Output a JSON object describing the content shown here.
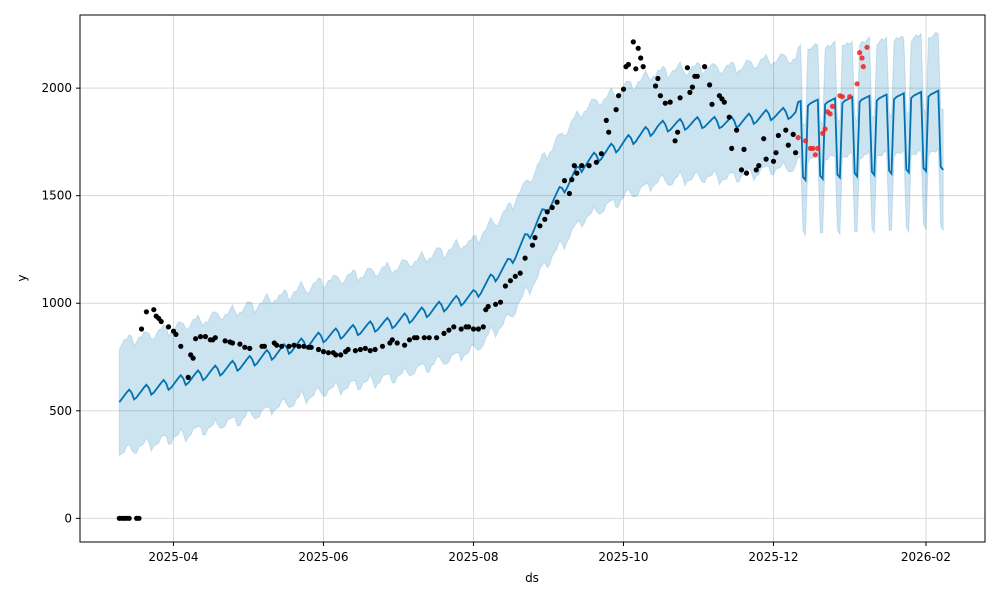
{
  "chart_data": {
    "type": "line",
    "title": "",
    "xlabel": "ds",
    "ylabel": "y",
    "x_origin": "2025-03-10",
    "x_unit": "days since 2025-03-10",
    "xlim": [
      -16,
      352
    ],
    "ylim": [
      -110,
      2340
    ],
    "grid": true,
    "x_ticks": [
      {
        "label": "2025-04",
        "day": 22
      },
      {
        "label": "2025-06",
        "day": 83
      },
      {
        "label": "2025-08",
        "day": 144
      },
      {
        "label": "2025-10",
        "day": 205
      },
      {
        "label": "2025-12",
        "day": 266
      },
      {
        "label": "2026-02",
        "day": 328
      }
    ],
    "y_ticks": [
      0,
      500,
      1000,
      1500,
      2000
    ],
    "colors": {
      "forecast": "#0072B2",
      "interval": "#0072B2",
      "observed": "#000000",
      "actual_test": "#ee2222"
    },
    "forecast": {
      "start_day": 0,
      "end_day": 335,
      "cutoff_day": 276,
      "trend_knots": [
        [
          0,
          560
        ],
        [
          22,
          630
        ],
        [
          52,
          725
        ],
        [
          83,
          845
        ],
        [
          113,
          915
        ],
        [
          144,
          1035
        ],
        [
          158,
          1180
        ],
        [
          175,
          1460
        ],
        [
          189,
          1650
        ],
        [
          205,
          1745
        ],
        [
          219,
          1820
        ],
        [
          236,
          1840
        ],
        [
          250,
          1840
        ],
        [
          266,
          1880
        ],
        [
          276,
          1885
        ],
        [
          335,
          1935
        ]
      ],
      "weekly_pattern_history": [
        -20,
        -8,
        4,
        16,
        26,
        8,
        -26
      ],
      "weekly_pattern_forecast": [
        30,
        40,
        45,
        50,
        55,
        -300,
        -315
      ],
      "interval_halfwidth": 255
    },
    "series": [
      {
        "name": "observed",
        "points": [
          [
            0,
            0
          ],
          [
            1,
            0
          ],
          [
            2,
            0
          ],
          [
            3,
            0
          ],
          [
            4,
            0
          ],
          [
            7,
            0
          ],
          [
            8,
            0
          ],
          [
            9,
            880
          ],
          [
            11,
            960
          ],
          [
            14,
            970
          ],
          [
            15,
            940
          ],
          [
            16,
            930
          ],
          [
            17,
            915
          ],
          [
            20,
            890
          ],
          [
            22,
            870
          ],
          [
            23,
            855
          ],
          [
            25,
            800
          ],
          [
            28,
            655
          ],
          [
            29,
            760
          ],
          [
            30,
            745
          ],
          [
            31,
            835
          ],
          [
            33,
            845
          ],
          [
            35,
            845
          ],
          [
            37,
            830
          ],
          [
            38,
            830
          ],
          [
            39,
            840
          ],
          [
            43,
            825
          ],
          [
            45,
            820
          ],
          [
            46,
            815
          ],
          [
            49,
            810
          ],
          [
            51,
            795
          ],
          [
            53,
            790
          ],
          [
            58,
            800
          ],
          [
            59,
            800
          ],
          [
            63,
            815
          ],
          [
            64,
            805
          ],
          [
            66,
            800
          ],
          [
            69,
            800
          ],
          [
            71,
            805
          ],
          [
            73,
            800
          ],
          [
            75,
            800
          ],
          [
            77,
            795
          ],
          [
            78,
            795
          ],
          [
            81,
            785
          ],
          [
            83,
            775
          ],
          [
            85,
            770
          ],
          [
            87,
            770
          ],
          [
            88,
            760
          ],
          [
            90,
            760
          ],
          [
            92,
            775
          ],
          [
            93,
            785
          ],
          [
            96,
            780
          ],
          [
            98,
            785
          ],
          [
            100,
            790
          ],
          [
            102,
            780
          ],
          [
            104,
            785
          ],
          [
            107,
            800
          ],
          [
            110,
            815
          ],
          [
            111,
            830
          ],
          [
            113,
            815
          ],
          [
            116,
            805
          ],
          [
            118,
            830
          ],
          [
            120,
            840
          ],
          [
            121,
            840
          ],
          [
            124,
            840
          ],
          [
            126,
            840
          ],
          [
            129,
            840
          ],
          [
            132,
            860
          ],
          [
            134,
            875
          ],
          [
            136,
            890
          ],
          [
            139,
            880
          ],
          [
            141,
            890
          ],
          [
            142,
            890
          ],
          [
            144,
            880
          ],
          [
            146,
            880
          ],
          [
            148,
            890
          ],
          [
            149,
            970
          ],
          [
            150,
            985
          ],
          [
            153,
            995
          ],
          [
            155,
            1005
          ],
          [
            157,
            1080
          ],
          [
            159,
            1105
          ],
          [
            161,
            1125
          ],
          [
            163,
            1140
          ],
          [
            165,
            1210
          ],
          [
            168,
            1270
          ],
          [
            169,
            1305
          ],
          [
            171,
            1360
          ],
          [
            173,
            1390
          ],
          [
            174,
            1425
          ],
          [
            176,
            1445
          ],
          [
            178,
            1470
          ],
          [
            181,
            1570
          ],
          [
            183,
            1510
          ],
          [
            184,
            1575
          ],
          [
            185,
            1640
          ],
          [
            186,
            1605
          ],
          [
            188,
            1640
          ],
          [
            191,
            1640
          ],
          [
            194,
            1655
          ],
          [
            196,
            1695
          ],
          [
            198,
            1850
          ],
          [
            199,
            1795
          ],
          [
            202,
            1900
          ],
          [
            203,
            1965
          ],
          [
            205,
            1995
          ],
          [
            206,
            2100
          ],
          [
            207,
            2110
          ],
          [
            209,
            2215
          ],
          [
            210,
            2090
          ],
          [
            211,
            2185
          ],
          [
            212,
            2140
          ],
          [
            213,
            2100
          ],
          [
            218,
            2010
          ],
          [
            219,
            2045
          ],
          [
            220,
            1965
          ],
          [
            222,
            1930
          ],
          [
            224,
            1935
          ],
          [
            226,
            1755
          ],
          [
            227,
            1795
          ],
          [
            228,
            1955
          ],
          [
            231,
            2095
          ],
          [
            232,
            1980
          ],
          [
            233,
            2005
          ],
          [
            234,
            2055
          ],
          [
            235,
            2055
          ],
          [
            238,
            2100
          ],
          [
            240,
            2015
          ],
          [
            241,
            1925
          ],
          [
            244,
            1965
          ],
          [
            245,
            1950
          ],
          [
            246,
            1935
          ],
          [
            248,
            1865
          ],
          [
            249,
            1720
          ],
          [
            251,
            1805
          ],
          [
            253,
            1620
          ],
          [
            254,
            1715
          ],
          [
            255,
            1605
          ],
          [
            259,
            1620
          ],
          [
            260,
            1640
          ],
          [
            262,
            1765
          ],
          [
            263,
            1670
          ],
          [
            266,
            1660
          ],
          [
            267,
            1700
          ],
          [
            268,
            1780
          ],
          [
            271,
            1805
          ],
          [
            272,
            1735
          ],
          [
            274,
            1785
          ],
          [
            275,
            1700
          ]
        ]
      },
      {
        "name": "actual_test",
        "points": [
          [
            276,
            1770
          ],
          [
            279,
            1755
          ],
          [
            281,
            1720
          ],
          [
            282,
            1720
          ],
          [
            283,
            1690
          ],
          [
            284,
            1720
          ],
          [
            286,
            1790
          ],
          [
            287,
            1810
          ],
          [
            288,
            1890
          ],
          [
            289,
            1880
          ],
          [
            290,
            1915
          ],
          [
            293,
            1965
          ],
          [
            294,
            1960
          ],
          [
            297,
            1960
          ],
          [
            300,
            2020
          ],
          [
            301,
            2165
          ],
          [
            302,
            2140
          ],
          [
            302.5,
            2100
          ],
          [
            304,
            2190
          ]
        ]
      }
    ]
  }
}
